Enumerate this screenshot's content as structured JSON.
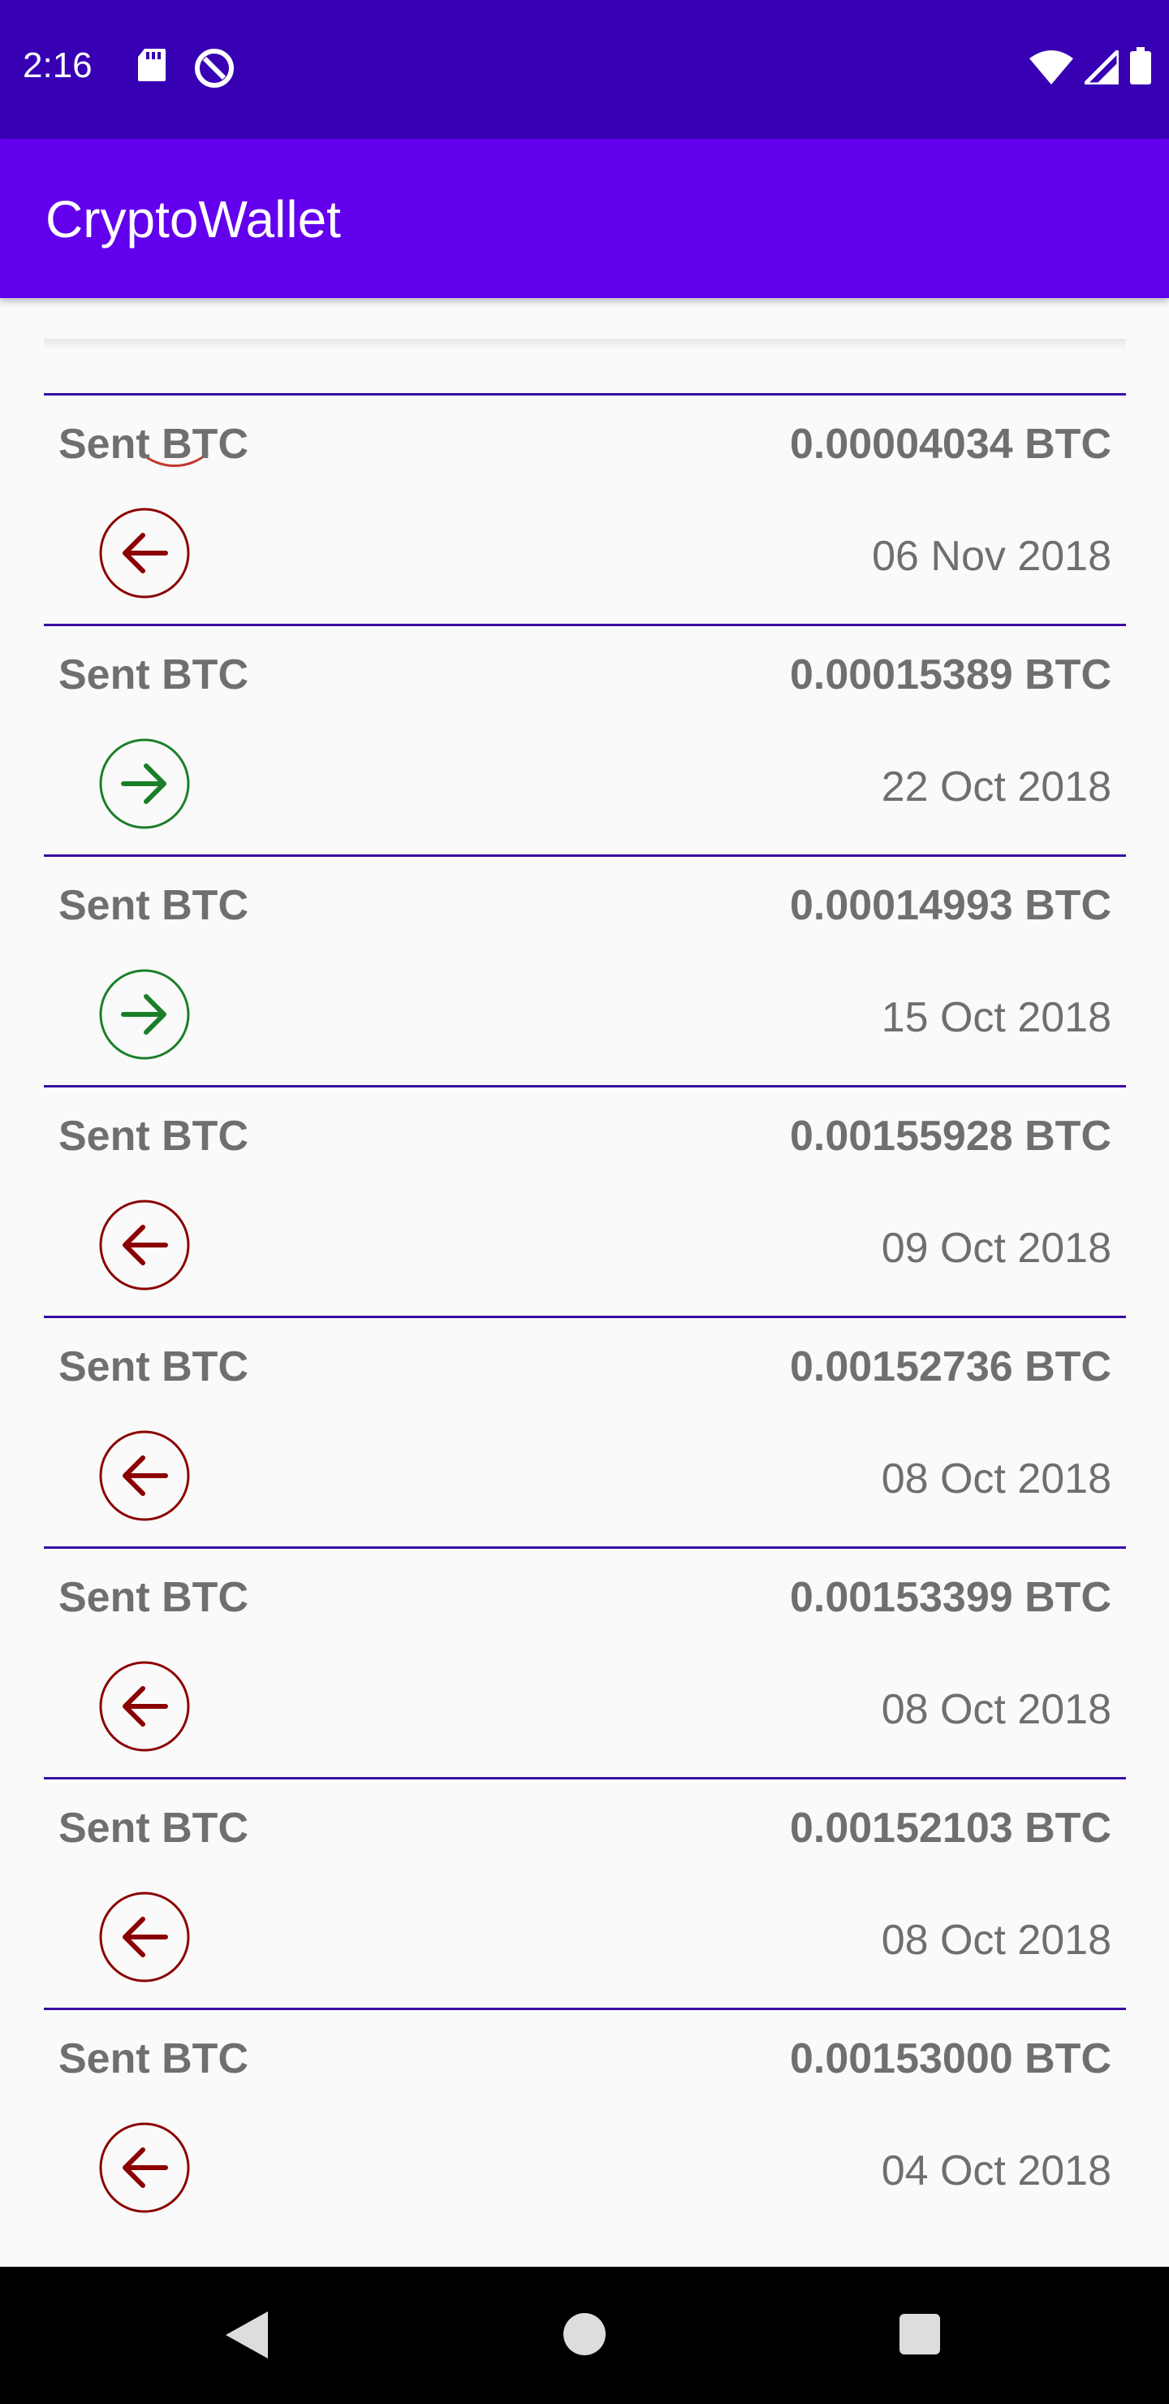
{
  "status_bar": {
    "time": "2:16"
  },
  "app_bar": {
    "title": "CryptoWallet"
  },
  "colors": {
    "status_bar_bg": "#3700b3",
    "app_bar_bg": "#6200ee",
    "divider": "#3a0ca3",
    "sent_icon": "#8b0000",
    "received_icon": "#1b7f2a",
    "text_gray": "#6f6f6f"
  },
  "transactions": [
    {
      "title": "Sent BTC",
      "amount": "0.00004034 BTC",
      "date": "06 Nov 2018",
      "direction": "out",
      "icon": "arrow-left-icon"
    },
    {
      "title": "Sent BTC",
      "amount": "0.00015389 BTC",
      "date": "22 Oct 2018",
      "direction": "in",
      "icon": "arrow-right-icon"
    },
    {
      "title": "Sent BTC",
      "amount": "0.00014993 BTC",
      "date": "15 Oct 2018",
      "direction": "in",
      "icon": "arrow-right-icon"
    },
    {
      "title": "Sent BTC",
      "amount": "0.00155928 BTC",
      "date": "09 Oct 2018",
      "direction": "out",
      "icon": "arrow-left-icon"
    },
    {
      "title": "Sent BTC",
      "amount": "0.00152736 BTC",
      "date": "08 Oct 2018",
      "direction": "out",
      "icon": "arrow-left-icon"
    },
    {
      "title": "Sent BTC",
      "amount": "0.00153399 BTC",
      "date": "08 Oct 2018",
      "direction": "out",
      "icon": "arrow-left-icon"
    },
    {
      "title": "Sent BTC",
      "amount": "0.00152103 BTC",
      "date": "08 Oct 2018",
      "direction": "out",
      "icon": "arrow-left-icon"
    },
    {
      "title": "Sent BTC",
      "amount": "0.00153000 BTC",
      "date": "04 Oct 2018",
      "direction": "out",
      "icon": "arrow-left-icon"
    }
  ]
}
